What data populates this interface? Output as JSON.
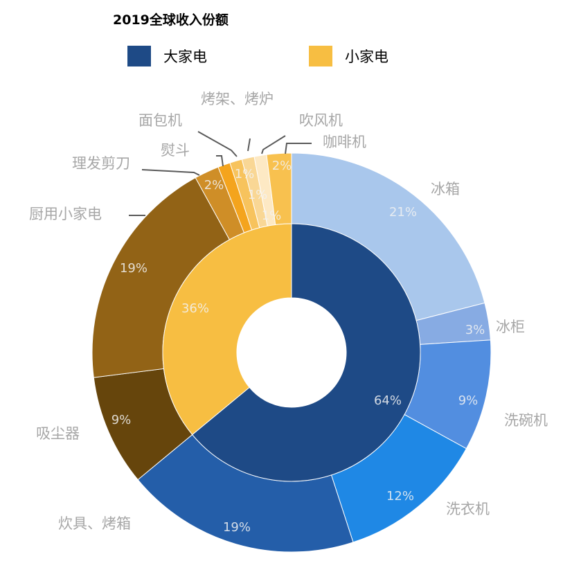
{
  "chart_data": {
    "type": "donut",
    "title": "2019全球收入份额",
    "legend": {
      "placement": "top",
      "items": [
        {
          "label": "大家电",
          "color": "#1e4a86"
        },
        {
          "label": "小家电",
          "color": "#f7be42"
        }
      ]
    },
    "inner_ring": [
      {
        "name": "大家电",
        "value": 64,
        "label": "64%",
        "color": "#1e4a86"
      },
      {
        "name": "小家电",
        "value": 36,
        "label": "36%",
        "color": "#f7be42"
      }
    ],
    "outer_ring": [
      {
        "name": "冰箱",
        "value": 21,
        "label": "21%",
        "color": "#a9c7ec"
      },
      {
        "name": "冰柜",
        "value": 3,
        "label": "3%",
        "color": "#87abe3"
      },
      {
        "name": "洗碗机",
        "value": 9,
        "label": "9%",
        "color": "#528ee0"
      },
      {
        "name": "洗衣机",
        "value": 12,
        "label": "12%",
        "color": "#1f88e5"
      },
      {
        "name": "炊具、烤箱",
        "value": 19,
        "label": "19%",
        "color": "#245ea9"
      },
      {
        "name": "吸尘器",
        "value": 9,
        "label": "9%",
        "color": "#66450c"
      },
      {
        "name": "厨用小家电",
        "value": 19,
        "label": "19%",
        "color": "#926316"
      },
      {
        "name": "理发剪刀",
        "value": 2,
        "label": "2%",
        "color": "#cf8e27"
      },
      {
        "name": "熨斗",
        "value": 1,
        "label": "",
        "color": "#f4a41d"
      },
      {
        "name": "面包机",
        "value": 1,
        "label": "1%",
        "color": "#f7c35d"
      },
      {
        "name": "烤架、烤炉",
        "value": 1,
        "label": "1%",
        "color": "#f9d795"
      },
      {
        "name": "吹风机",
        "value": 1,
        "label": "1%",
        "color": "#fde9c4"
      },
      {
        "name": "咖啡机",
        "value": 2,
        "label": "2%",
        "color": "#f8c14f"
      }
    ]
  }
}
